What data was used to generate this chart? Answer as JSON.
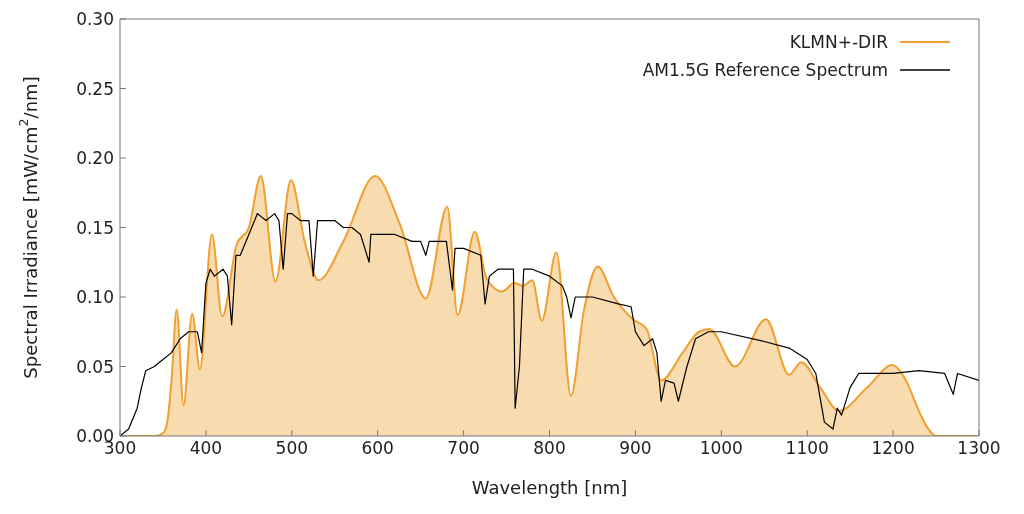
{
  "chart_data": {
    "type": "line",
    "xlabel": "Wavelength [nm]",
    "ylabel": "Spectral Irradiance [mW/cm$^{2}$/nm]",
    "xlim": [
      300,
      1300
    ],
    "xticks": [
      300,
      400,
      500,
      600,
      700,
      800,
      900,
      1000,
      1100,
      1200,
      1300
    ],
    "ylim": [
      0,
      0.3
    ],
    "yticks": [
      {
        "value": 0,
        "label": "0.00"
      },
      0.05,
      {
        "value": 0.1,
        "label": "0.10"
      },
      0.15,
      {
        "value": 0.2,
        "label": "0.20"
      },
      0.25,
      {
        "value": 0.3,
        "label": "0.30"
      }
    ],
    "grid": false,
    "legend": "top right",
    "marker": "none",
    "line_style": "solid",
    "series": [
      {
        "name": "KLMN+-DIR",
        "type": "area",
        "color": "#f0a030",
        "x": [
          300,
          340,
          350,
          355,
          360,
          366,
          374,
          384,
          393,
          407,
          419,
          436,
          450,
          464,
          481,
          499,
          515,
          531,
          560,
          597,
          626,
          656,
          681,
          693,
          713,
          727,
          745,
          759,
          769,
          780,
          791,
          808,
          825,
          840,
          856,
          875,
          897,
          913,
          930,
          955,
          974,
          986,
          1016,
          1052,
          1079,
          1093,
          1115,
          1137,
          1170,
          1199,
          1215,
          1230,
          1240,
          1250,
          1270,
          1300
        ],
        "values": [
          0,
          0,
          0.002,
          0.01,
          0.04,
          0.091,
          0.022,
          0.088,
          0.048,
          0.145,
          0.086,
          0.138,
          0.15,
          0.187,
          0.111,
          0.184,
          0.14,
          0.112,
          0.14,
          0.187,
          0.152,
          0.099,
          0.165,
          0.087,
          0.147,
          0.113,
          0.104,
          0.11,
          0.108,
          0.112,
          0.083,
          0.132,
          0.029,
          0.09,
          0.122,
          0.1,
          0.084,
          0.077,
          0.04,
          0.06,
          0.075,
          0.077,
          0.05,
          0.084,
          0.044,
          0.053,
          0.035,
          0.018,
          0.035,
          0.051,
          0.04,
          0.018,
          0.006,
          0,
          0,
          0
        ]
      },
      {
        "name": "AM1.5G Reference Spectrum",
        "color": "#000000",
        "x": [
          300,
          310,
          320,
          325,
          330,
          340,
          350,
          360,
          370,
          380,
          390,
          395,
          400,
          405,
          410,
          420,
          425,
          430,
          435,
          440,
          450,
          460,
          470,
          480,
          485,
          490,
          495,
          500,
          510,
          520,
          525,
          530,
          540,
          550,
          560,
          570,
          580,
          590,
          592,
          600,
          620,
          640,
          650,
          656,
          660,
          680,
          687,
          690,
          700,
          720,
          725,
          730,
          740,
          750,
          758,
          760,
          765,
          770,
          780,
          800,
          815,
          820,
          825,
          830,
          850,
          880,
          895,
          900,
          910,
          920,
          925,
          930,
          935,
          945,
          950,
          960,
          970,
          985,
          1000,
          1050,
          1080,
          1100,
          1110,
          1120,
          1130,
          1135,
          1140,
          1150,
          1160,
          1175,
          1200,
          1230,
          1260,
          1270,
          1275,
          1300
        ],
        "values": [
          0,
          0.005,
          0.02,
          0.035,
          0.047,
          0.05,
          0.055,
          0.06,
          0.07,
          0.075,
          0.075,
          0.06,
          0.11,
          0.12,
          0.115,
          0.12,
          0.115,
          0.08,
          0.13,
          0.13,
          0.145,
          0.16,
          0.155,
          0.16,
          0.155,
          0.12,
          0.16,
          0.16,
          0.155,
          0.155,
          0.115,
          0.155,
          0.155,
          0.155,
          0.15,
          0.15,
          0.145,
          0.125,
          0.145,
          0.145,
          0.145,
          0.14,
          0.14,
          0.13,
          0.14,
          0.14,
          0.105,
          0.135,
          0.135,
          0.13,
          0.095,
          0.115,
          0.12,
          0.12,
          0.12,
          0.02,
          0.05,
          0.12,
          0.12,
          0.115,
          0.108,
          0.1,
          0.085,
          0.1,
          0.1,
          0.095,
          0.093,
          0.075,
          0.065,
          0.07,
          0.06,
          0.025,
          0.04,
          0.038,
          0.025,
          0.05,
          0.07,
          0.075,
          0.075,
          0.068,
          0.063,
          0.055,
          0.045,
          0.01,
          0.005,
          0.02,
          0.015,
          0.035,
          0.045,
          0.045,
          0.045,
          0.047,
          0.045,
          0.03,
          0.045,
          0.04
        ]
      }
    ]
  }
}
